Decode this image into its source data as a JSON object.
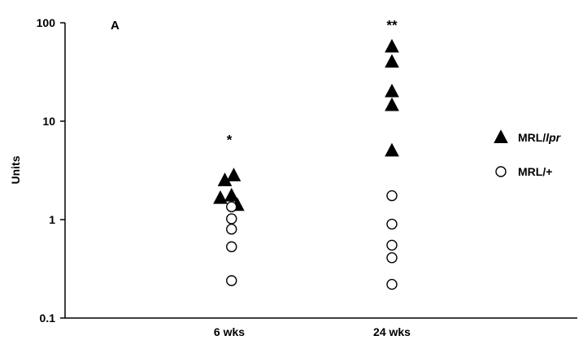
{
  "chart_data": {
    "type": "scatter",
    "panel_label": "A",
    "ylabel": "Units",
    "xlabel": "",
    "y_scale": "log",
    "ylim": [
      0.1,
      100
    ],
    "y_ticks": [
      {
        "value": 0.1,
        "label": "0.1"
      },
      {
        "value": 1,
        "label": "1"
      },
      {
        "value": 10,
        "label": "10"
      },
      {
        "value": 100,
        "label": "100"
      }
    ],
    "categories": [
      "6 wks",
      "24 wks"
    ],
    "series": [
      {
        "name": "MRL/lpr",
        "name_parts": [
          {
            "text": "MRL/",
            "italic": false
          },
          {
            "text": "lpr",
            "italic": true
          }
        ],
        "marker": "filled-triangle",
        "color": "#000000",
        "points": [
          {
            "category": "6 wks",
            "offset": -0.1,
            "y": 2.5
          },
          {
            "category": "6 wks",
            "offset": 0.1,
            "y": 2.8
          },
          {
            "category": "6 wks",
            "offset": -0.2,
            "y": 1.65
          },
          {
            "category": "6 wks",
            "offset": 0.05,
            "y": 1.75
          },
          {
            "category": "6 wks",
            "offset": 0.18,
            "y": 1.4
          },
          {
            "category": "24 wks",
            "offset": 0.0,
            "y": 57
          },
          {
            "category": "24 wks",
            "offset": 0.0,
            "y": 40
          },
          {
            "category": "24 wks",
            "offset": 0.0,
            "y": 20
          },
          {
            "category": "24 wks",
            "offset": 0.0,
            "y": 14.5
          },
          {
            "category": "24 wks",
            "offset": 0.0,
            "y": 5
          }
        ]
      },
      {
        "name": "MRL/+",
        "name_parts": [
          {
            "text": "MRL/+",
            "italic": false
          }
        ],
        "marker": "open-circle",
        "color": "#000000",
        "points": [
          {
            "category": "6 wks",
            "offset": 0.05,
            "y": 1.35
          },
          {
            "category": "6 wks",
            "offset": 0.05,
            "y": 1.02
          },
          {
            "category": "6 wks",
            "offset": 0.05,
            "y": 0.8
          },
          {
            "category": "6 wks",
            "offset": 0.05,
            "y": 0.53
          },
          {
            "category": "6 wks",
            "offset": 0.05,
            "y": 0.24
          },
          {
            "category": "24 wks",
            "offset": 0.0,
            "y": 1.75
          },
          {
            "category": "24 wks",
            "offset": 0.0,
            "y": 0.9
          },
          {
            "category": "24 wks",
            "offset": 0.0,
            "y": 0.55
          },
          {
            "category": "24 wks",
            "offset": 0.0,
            "y": 0.41
          },
          {
            "category": "24 wks",
            "offset": 0.0,
            "y": 0.22
          }
        ]
      }
    ],
    "annotations": [
      {
        "text": "*",
        "category": "6 wks",
        "y": 6.5
      },
      {
        "text": "**",
        "category": "24 wks",
        "y": 95
      }
    ],
    "legend_position": "right",
    "grid": false
  }
}
